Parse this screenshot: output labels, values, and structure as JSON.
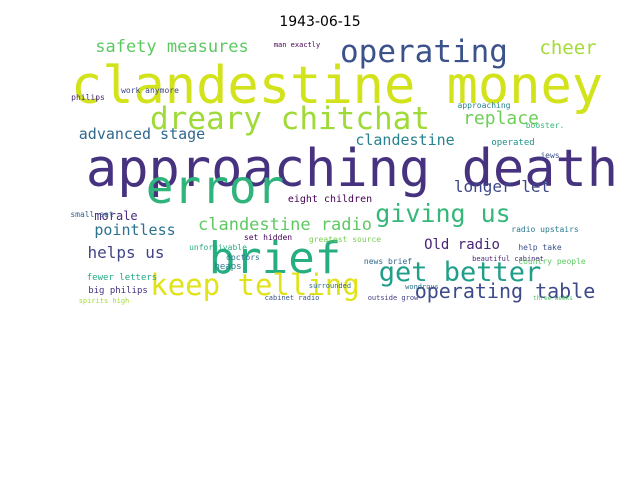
{
  "chart_data": {
    "type": "wordcloud",
    "title": "1943-06-15",
    "words": [
      {
        "text": "approaching death",
        "color": "#46327e"
      },
      {
        "text": "clandestine money",
        "color": "#d2e21b"
      },
      {
        "text": "error",
        "color": "#2fb47c"
      },
      {
        "text": "brief",
        "color": "#26ad81"
      },
      {
        "text": "dreary chitchat",
        "color": "#a0da39"
      },
      {
        "text": "operating",
        "color": "#3b528b"
      },
      {
        "text": "keep telling",
        "color": "#e0e318"
      },
      {
        "text": "get better",
        "color": "#1f9e89"
      },
      {
        "text": "giving us",
        "color": "#35b779"
      },
      {
        "text": "safety measures",
        "color": "#5ec962"
      },
      {
        "text": "cheer",
        "color": "#a5db36"
      },
      {
        "text": "replace",
        "color": "#6ece58"
      },
      {
        "text": "advanced stage",
        "color": "#31688e"
      },
      {
        "text": "clandestine",
        "color": "#26828e"
      },
      {
        "text": "longer let",
        "color": "#3e4989"
      },
      {
        "text": "morale",
        "color": "#472d7b"
      },
      {
        "text": "pointless",
        "color": "#2c728e"
      },
      {
        "text": "helps us",
        "color": "#414487"
      },
      {
        "text": "clandestine radio",
        "color": "#5ec962"
      },
      {
        "text": "Old radio",
        "color": "#482475"
      },
      {
        "text": "operating table",
        "color": "#3e4a89"
      },
      {
        "text": "eight children",
        "color": "#440154"
      },
      {
        "text": "news brief",
        "color": "#31688e"
      },
      {
        "text": "operated",
        "color": "#20928c"
      },
      {
        "text": "booster.",
        "color": "#35b779"
      },
      {
        "text": "radio upstairs",
        "color": "#2a788e"
      },
      {
        "text": "beautiful cabinet",
        "color": "#482878"
      },
      {
        "text": "help take",
        "color": "#3b528b"
      },
      {
        "text": "country people",
        "color": "#5ec962"
      },
      {
        "text": "fewer letters",
        "color": "#22a884"
      },
      {
        "text": "big philips",
        "color": "#46337e"
      },
      {
        "text": "small set",
        "color": "#355f8d"
      },
      {
        "text": "work anymore",
        "color": "#3f4788"
      },
      {
        "text": "greatest source",
        "color": "#75d054"
      },
      {
        "text": "unforgivable",
        "color": "#29af7f"
      },
      {
        "text": "set hidden",
        "color": "#440154"
      },
      {
        "text": "heaps",
        "color": "#277f8e"
      },
      {
        "text": "surrounded",
        "color": "#2e6e8e"
      },
      {
        "text": "three weeks",
        "color": "#52c569"
      },
      {
        "text": "jews",
        "color": "#3b528b"
      },
      {
        "text": "man exactly",
        "color": "#440154"
      },
      {
        "text": "philips",
        "color": "#472a7a"
      },
      {
        "text": "spirits high",
        "color": "#a8db34"
      },
      {
        "text": "outside grow",
        "color": "#433e85"
      },
      {
        "text": "wondrous",
        "color": "#2d708e"
      },
      {
        "text": "approaching",
        "color": "#26828e"
      },
      {
        "text": "cabinet radio",
        "color": "#3a548c"
      },
      {
        "text": "doctors",
        "color": "#2c728e"
      }
    ]
  }
}
